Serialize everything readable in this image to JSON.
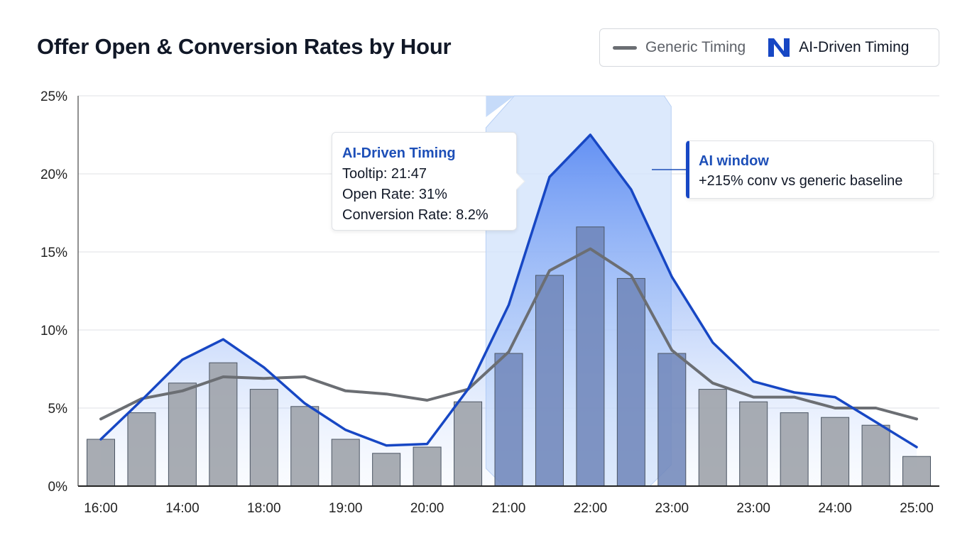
{
  "chart_data": {
    "type": "bar+line",
    "title": "Offer Open & Conversion Rates by Hour",
    "categories": [
      "16:00",
      "",
      "14:00",
      "",
      "18:00",
      "",
      "19:00",
      "",
      "20:00",
      "",
      "21:00",
      "",
      "22:00",
      "",
      "23:00",
      "",
      "23:00",
      "",
      "24:00",
      "",
      "25:00"
    ],
    "ylim": [
      0,
      25
    ],
    "yticks": [
      "0%",
      "5%",
      "10%",
      "15%",
      "20%",
      "25%"
    ],
    "ytick_values": [
      0,
      5,
      10,
      15,
      20,
      25
    ],
    "grid": true,
    "legend_placement": "top-right",
    "bars": [
      3.0,
      4.7,
      6.6,
      7.9,
      6.2,
      5.1,
      3.0,
      2.1,
      2.5,
      5.4,
      8.5,
      13.5,
      16.6,
      13.3,
      8.5,
      6.2,
      5.4,
      4.7,
      4.4,
      3.9,
      1.9
    ],
    "series": [
      {
        "name": "Generic Timing",
        "color": "#6b6e73",
        "values": [
          4.3,
          5.6,
          6.1,
          7.0,
          6.9,
          7.0,
          6.1,
          5.9,
          5.5,
          6.2,
          8.6,
          13.8,
          15.2,
          13.5,
          8.7,
          6.6,
          5.7,
          5.7,
          5.0,
          5.0,
          4.3
        ]
      },
      {
        "name": "AI-Driven Timing",
        "color": "#1747c4",
        "values": [
          3.0,
          5.5,
          8.1,
          9.4,
          7.6,
          5.3,
          3.6,
          2.6,
          2.7,
          6.2,
          11.6,
          19.8,
          22.5,
          19.0,
          13.4,
          9.2,
          6.7,
          6.0,
          5.7,
          4.1,
          2.5
        ]
      }
    ],
    "highlight_window": {
      "from_index": 9.45,
      "to_index": 14
    }
  },
  "legend": {
    "generic": "Generic Timing",
    "ai": "AI-Driven Timing"
  },
  "tooltip": {
    "title": "AI-Driven Timing",
    "line1": "Tooltip: 21:47",
    "line2": "Open Rate: 31%",
    "line3": "Conversion Rate: 8.2%"
  },
  "annotation": {
    "title": "AI window",
    "text": "+215% conv vs generic baseline"
  },
  "colors": {
    "accent": "#1747c4",
    "bar": "#9fa3ab",
    "generic": "#6b6e73",
    "band": "#cfe1fb"
  }
}
